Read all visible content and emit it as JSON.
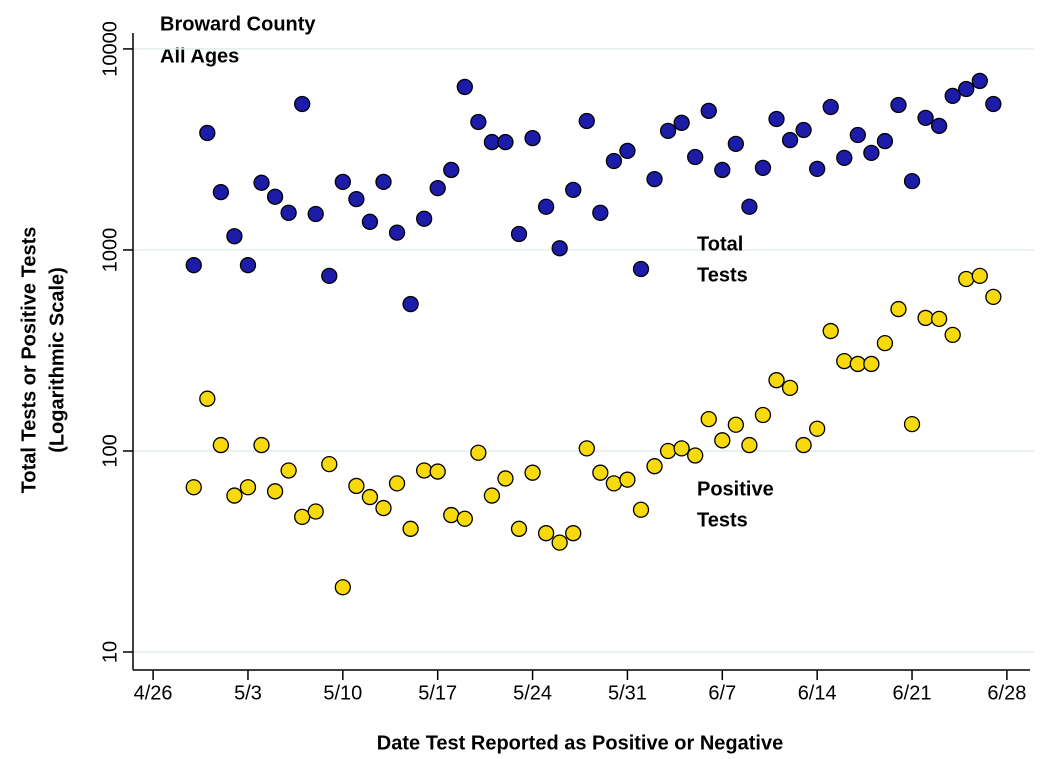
{
  "chart_data": {
    "type": "scatter",
    "title": [
      "Broward County",
      "All Ages"
    ],
    "xlabel": "Date Test Reported as Positive or Negative",
    "ylabel": [
      "Total Tests or Positive Tests",
      "(Logarithmic Scale)"
    ],
    "log_y": true,
    "grid": true,
    "x": [
      "4/29",
      "4/30",
      "5/1",
      "5/2",
      "5/3",
      "5/4",
      "5/5",
      "5/6",
      "5/7",
      "5/8",
      "5/9",
      "5/10",
      "5/11",
      "5/12",
      "5/13",
      "5/14",
      "5/15",
      "5/16",
      "5/17",
      "5/18",
      "5/19",
      "5/20",
      "5/21",
      "5/22",
      "5/23",
      "5/24",
      "5/25",
      "5/26",
      "5/27",
      "5/28",
      "5/29",
      "5/30",
      "5/31",
      "6/1",
      "6/2",
      "6/3",
      "6/4",
      "6/5",
      "6/6",
      "6/7",
      "6/8",
      "6/9",
      "6/10",
      "6/11",
      "6/12",
      "6/13",
      "6/14",
      "6/15",
      "6/16",
      "6/17",
      "6/18",
      "6/19",
      "6/20",
      "6/21",
      "6/22",
      "6/23",
      "6/24",
      "6/25",
      "6/26",
      "6/27"
    ],
    "xlim": [
      "4/24",
      "6/30"
    ],
    "xticks": [
      "4/26",
      "5/3",
      "5/10",
      "5/17",
      "5/24",
      "5/31",
      "6/7",
      "6/14",
      "6/21",
      "6/28"
    ],
    "ylim": [
      8,
      12000
    ],
    "yticks": [
      10,
      100,
      1000,
      10000
    ],
    "series": [
      {
        "name": [
          "Total",
          "Tests"
        ],
        "color": "#1c1ca8",
        "values": [
          840,
          3820,
          1940,
          1170,
          840,
          2160,
          1840,
          1530,
          5320,
          1510,
          743,
          2180,
          1790,
          1380,
          2180,
          1220,
          538,
          1430,
          2030,
          2500,
          6470,
          4330,
          3440,
          3440,
          1200,
          3600,
          1640,
          1020,
          1990,
          4380,
          1530,
          2770,
          3110,
          804,
          2250,
          3910,
          4290,
          2900,
          4920,
          2500,
          3370,
          1640,
          2560,
          4480,
          3520,
          3950,
          2530,
          5140,
          2870,
          3730,
          3040,
          3480,
          5260,
          2200,
          4540,
          4140,
          5840,
          6320,
          6930,
          5320
        ]
      },
      {
        "name": [
          "Positive",
          "Tests"
        ],
        "color": "#f7d90c",
        "values": [
          66,
          182,
          107,
          60,
          66,
          107,
          63,
          80,
          47,
          50,
          86,
          21,
          67,
          59,
          52,
          69,
          41,
          80,
          79,
          48,
          46,
          98,
          60,
          73,
          41,
          78,
          39,
          35,
          39,
          103,
          78,
          69,
          72,
          51,
          84,
          100,
          103,
          95,
          144,
          113,
          135,
          107,
          151,
          225,
          206,
          107,
          129,
          395,
          280,
          271,
          271,
          344,
          508,
          136,
          459,
          454,
          378,
          717,
          743,
          584
        ]
      }
    ]
  }
}
